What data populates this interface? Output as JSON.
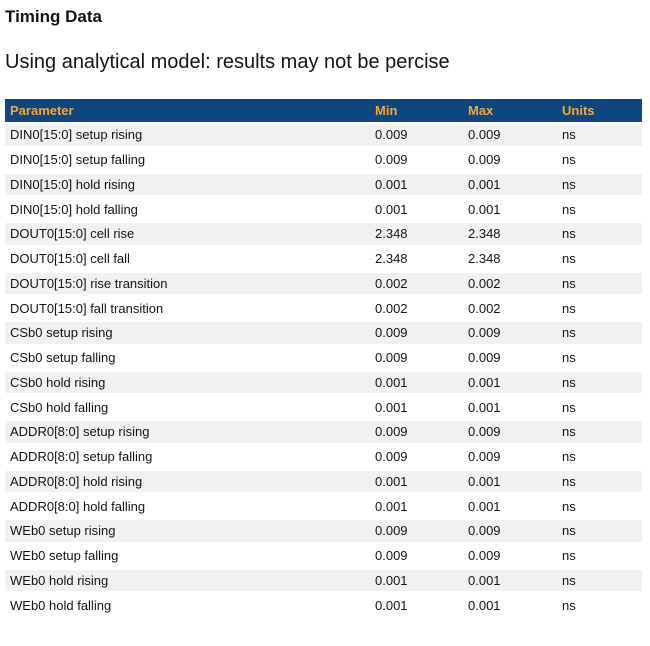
{
  "page": {
    "title": "Timing Data",
    "subtitle": "Using analytical model: results may not be percise"
  },
  "table": {
    "columns": {
      "parameter": "Parameter",
      "min": "Min",
      "max": "Max",
      "units": "Units"
    },
    "rows": [
      {
        "parameter": "DIN0[15:0] setup rising",
        "min": "0.009",
        "max": "0.009",
        "units": "ns"
      },
      {
        "parameter": "DIN0[15:0] setup falling",
        "min": "0.009",
        "max": "0.009",
        "units": "ns"
      },
      {
        "parameter": "DIN0[15:0] hold rising",
        "min": "0.001",
        "max": "0.001",
        "units": "ns"
      },
      {
        "parameter": "DIN0[15:0] hold falling",
        "min": "0.001",
        "max": "0.001",
        "units": "ns"
      },
      {
        "parameter": "DOUT0[15:0] cell rise",
        "min": "2.348",
        "max": "2.348",
        "units": "ns"
      },
      {
        "parameter": "DOUT0[15:0] cell fall",
        "min": "2.348",
        "max": "2.348",
        "units": "ns"
      },
      {
        "parameter": "DOUT0[15:0] rise transition",
        "min": "0.002",
        "max": "0.002",
        "units": "ns"
      },
      {
        "parameter": "DOUT0[15:0] fall transition",
        "min": "0.002",
        "max": "0.002",
        "units": "ns"
      },
      {
        "parameter": "CSb0 setup rising",
        "min": "0.009",
        "max": "0.009",
        "units": "ns"
      },
      {
        "parameter": "CSb0 setup falling",
        "min": "0.009",
        "max": "0.009",
        "units": "ns"
      },
      {
        "parameter": "CSb0 hold rising",
        "min": "0.001",
        "max": "0.001",
        "units": "ns"
      },
      {
        "parameter": "CSb0 hold falling",
        "min": "0.001",
        "max": "0.001",
        "units": "ns"
      },
      {
        "parameter": "ADDR0[8:0] setup rising",
        "min": "0.009",
        "max": "0.009",
        "units": "ns"
      },
      {
        "parameter": "ADDR0[8:0] setup falling",
        "min": "0.009",
        "max": "0.009",
        "units": "ns"
      },
      {
        "parameter": "ADDR0[8:0] hold rising",
        "min": "0.001",
        "max": "0.001",
        "units": "ns"
      },
      {
        "parameter": "ADDR0[8:0] hold falling",
        "min": "0.001",
        "max": "0.001",
        "units": "ns"
      },
      {
        "parameter": "WEb0 setup rising",
        "min": "0.009",
        "max": "0.009",
        "units": "ns"
      },
      {
        "parameter": "WEb0 setup falling",
        "min": "0.009",
        "max": "0.009",
        "units": "ns"
      },
      {
        "parameter": "WEb0 hold rising",
        "min": "0.001",
        "max": "0.001",
        "units": "ns"
      },
      {
        "parameter": "WEb0 hold falling",
        "min": "0.001",
        "max": "0.001",
        "units": "ns"
      }
    ]
  },
  "colors": {
    "header_bg": "#10467F",
    "header_text": "#F2A73D",
    "row_alt_bg": "#F0F1F1",
    "body_text": "#141414"
  }
}
